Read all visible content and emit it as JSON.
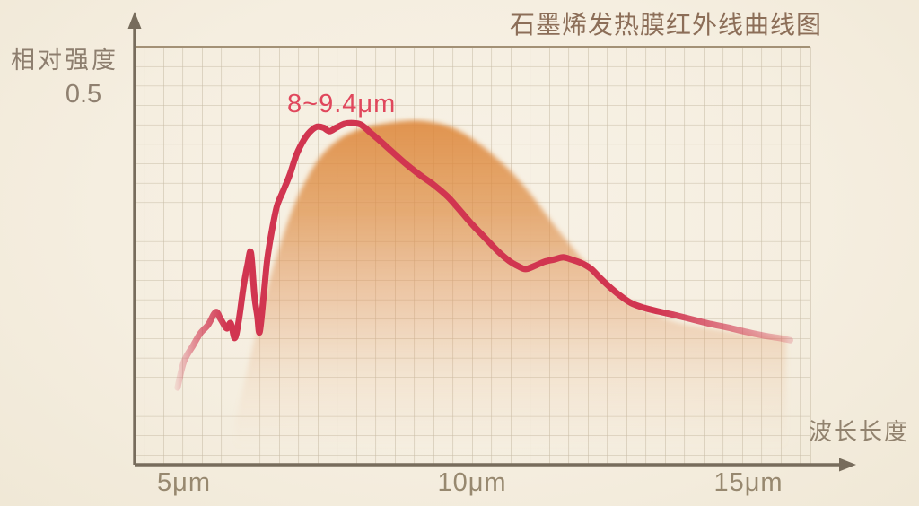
{
  "page": {
    "background": "#f5eee0"
  },
  "title": {
    "text": "石墨烯发热膜红外线曲线图"
  },
  "y_axis": {
    "label": "相对强度",
    "tick": "0.5"
  },
  "x_axis": {
    "label": "波长长度",
    "ticks": [
      "5μm",
      "10μm",
      "15μm"
    ]
  },
  "annotation": {
    "text": "8~9.4μm"
  },
  "colors": {
    "curve": "#d13550",
    "fill": "#dd8536",
    "grid": "#c8bca6",
    "grid_top_border": "#a39176",
    "axis": "#776c5c",
    "title_text": "#8c6e58",
    "label_text": "#91826e",
    "annotation_text": "#e0475c"
  },
  "chart_data": {
    "type": "line",
    "title": "石墨烯发热膜红外线曲线图",
    "xlabel": "波长长度",
    "ylabel": "相对强度",
    "x_unit": "μm",
    "xlim": [
      4.2,
      15.9
    ],
    "ylim": [
      0,
      0.5
    ],
    "x_ticks": [
      5,
      10,
      15
    ],
    "y_ticks": [
      0.5
    ],
    "grid": true,
    "legend": "none",
    "annotation": {
      "text": "8~9.4μm",
      "peak_range_um": [
        8,
        9.4
      ]
    },
    "series": [
      {
        "name": "graphene-infrared-intensity-curve",
        "style": "line",
        "color": "#d13550",
        "points": [
          [
            4.92,
            0.104
          ],
          [
            5.03,
            0.139
          ],
          [
            5.19,
            0.161
          ],
          [
            5.31,
            0.177
          ],
          [
            5.45,
            0.189
          ],
          [
            5.58,
            0.206
          ],
          [
            5.67,
            0.196
          ],
          [
            5.77,
            0.184
          ],
          [
            5.84,
            0.191
          ],
          [
            5.91,
            0.171
          ],
          [
            5.98,
            0.195
          ],
          [
            6.06,
            0.24
          ],
          [
            6.13,
            0.27
          ],
          [
            6.19,
            0.286
          ],
          [
            6.25,
            0.228
          ],
          [
            6.3,
            0.201
          ],
          [
            6.34,
            0.179
          ],
          [
            6.41,
            0.228
          ],
          [
            6.47,
            0.276
          ],
          [
            6.55,
            0.315
          ],
          [
            6.64,
            0.349
          ],
          [
            6.75,
            0.37
          ],
          [
            6.86,
            0.391
          ],
          [
            6.98,
            0.419
          ],
          [
            7.11,
            0.439
          ],
          [
            7.22,
            0.45
          ],
          [
            7.33,
            0.456
          ],
          [
            7.44,
            0.455
          ],
          [
            7.55,
            0.45
          ],
          [
            7.67,
            0.455
          ],
          [
            7.81,
            0.46
          ],
          [
            7.95,
            0.461
          ],
          [
            8.09,
            0.459
          ],
          [
            8.23,
            0.45
          ],
          [
            8.41,
            0.438
          ],
          [
            8.61,
            0.424
          ],
          [
            8.84,
            0.408
          ],
          [
            9.08,
            0.393
          ],
          [
            9.33,
            0.379
          ],
          [
            9.59,
            0.362
          ],
          [
            9.83,
            0.341
          ],
          [
            10.02,
            0.324
          ],
          [
            10.23,
            0.307
          ],
          [
            10.45,
            0.289
          ],
          [
            10.66,
            0.275
          ],
          [
            10.81,
            0.268
          ],
          [
            10.94,
            0.264
          ],
          [
            11.09,
            0.268
          ],
          [
            11.27,
            0.274
          ],
          [
            11.44,
            0.277
          ],
          [
            11.59,
            0.28
          ],
          [
            11.73,
            0.277
          ],
          [
            11.91,
            0.272
          ],
          [
            12.08,
            0.264
          ],
          [
            12.23,
            0.252
          ],
          [
            12.41,
            0.239
          ],
          [
            12.58,
            0.228
          ],
          [
            12.77,
            0.218
          ],
          [
            12.98,
            0.212
          ],
          [
            13.23,
            0.207
          ],
          [
            13.52,
            0.202
          ],
          [
            13.83,
            0.196
          ],
          [
            14.14,
            0.19
          ],
          [
            14.45,
            0.185
          ],
          [
            14.77,
            0.179
          ],
          [
            15.08,
            0.174
          ],
          [
            15.33,
            0.171
          ],
          [
            15.52,
            0.168
          ]
        ]
      },
      {
        "name": "radiation-envelope-area",
        "style": "area",
        "color": "#dd8536",
        "points": [
          [
            5.92,
            0.058
          ],
          [
            6.17,
            0.143
          ],
          [
            6.44,
            0.228
          ],
          [
            6.7,
            0.298
          ],
          [
            6.98,
            0.358
          ],
          [
            7.33,
            0.409
          ],
          [
            7.69,
            0.438
          ],
          [
            8.08,
            0.453
          ],
          [
            8.47,
            0.46
          ],
          [
            8.86,
            0.464
          ],
          [
            9.17,
            0.464
          ],
          [
            9.52,
            0.459
          ],
          [
            9.83,
            0.449
          ],
          [
            10.14,
            0.433
          ],
          [
            10.45,
            0.413
          ],
          [
            10.77,
            0.389
          ],
          [
            11.08,
            0.36
          ],
          [
            11.39,
            0.328
          ],
          [
            11.7,
            0.298
          ],
          [
            12.02,
            0.269
          ],
          [
            12.33,
            0.245
          ],
          [
            12.69,
            0.223
          ],
          [
            13.08,
            0.206
          ],
          [
            13.55,
            0.192
          ],
          [
            14.09,
            0.184
          ],
          [
            14.64,
            0.178
          ],
          [
            15.19,
            0.174
          ],
          [
            15.45,
            0.173
          ]
        ]
      }
    ]
  }
}
